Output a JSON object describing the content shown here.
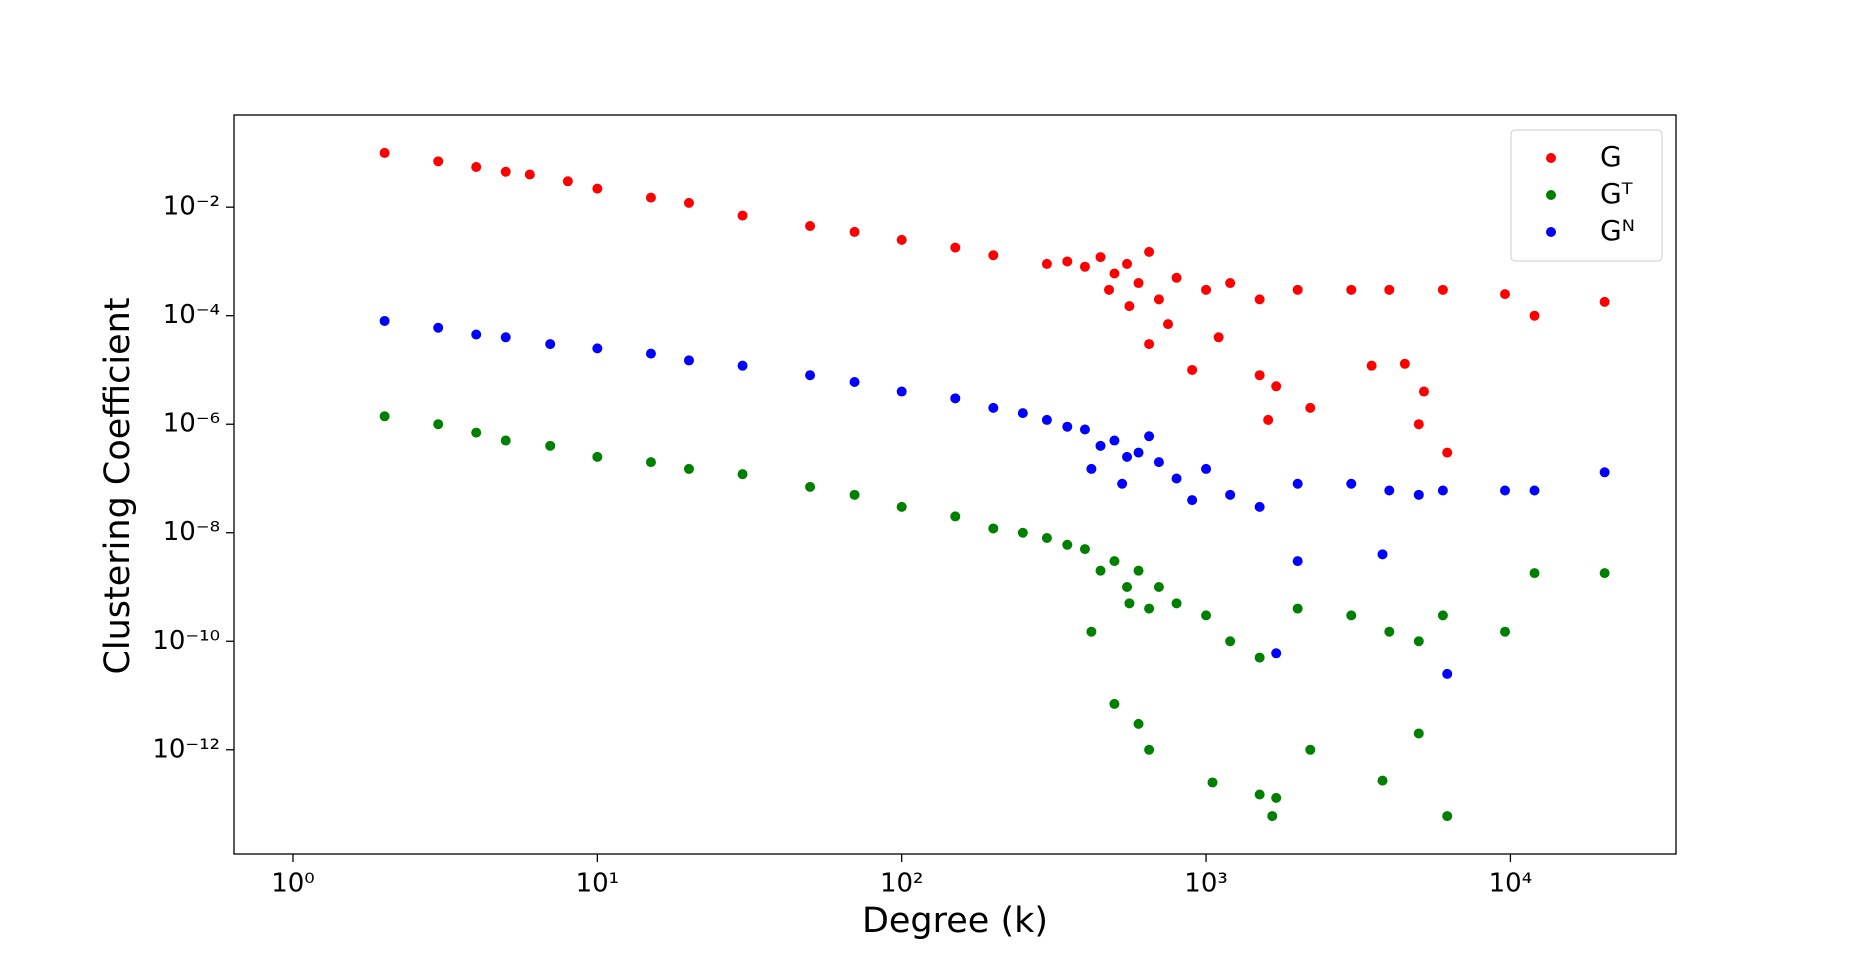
{
  "chart_data": {
    "type": "scatter",
    "xlabel": "Degree (k)",
    "ylabel": "Clustering Coefficient",
    "xscale": "log",
    "yscale": "log",
    "xlim": [
      0.64,
      35000
    ],
    "ylim": [
      1.2e-14,
      0.5
    ],
    "xticks": [
      {
        "value": 1,
        "label": "10⁰"
      },
      {
        "value": 10,
        "label": "10¹"
      },
      {
        "value": 100,
        "label": "10²"
      },
      {
        "value": 1000,
        "label": "10³"
      },
      {
        "value": 10000,
        "label": "10⁴"
      }
    ],
    "yticks": [
      {
        "value": 1e-12,
        "label": "10⁻¹²"
      },
      {
        "value": 1e-10,
        "label": "10⁻¹⁰"
      },
      {
        "value": 1e-08,
        "label": "10⁻⁸"
      },
      {
        "value": 1e-06,
        "label": "10⁻⁶"
      },
      {
        "value": 0.0001,
        "label": "10⁻⁴"
      },
      {
        "value": 0.01,
        "label": "10⁻²"
      }
    ],
    "legend": "upper right",
    "series": [
      {
        "name": "G",
        "color": "#ff0000",
        "x": [
          2,
          3,
          4,
          5,
          6,
          8,
          10,
          15,
          20,
          30,
          50,
          70,
          100,
          150,
          200,
          300,
          350,
          400,
          450,
          500,
          550,
          600,
          650,
          700,
          800,
          1000,
          1200,
          1500,
          2000,
          3000,
          4000,
          6000,
          9600,
          12000,
          20400,
          650,
          900,
          1500,
          1700,
          2200,
          1600,
          5200,
          5000,
          6200,
          3500,
          4500,
          480,
          560,
          750,
          1100
        ],
        "values": [
          0.1,
          0.07,
          0.055,
          0.045,
          0.04,
          0.03,
          0.022,
          0.015,
          0.012,
          0.007,
          0.0045,
          0.0035,
          0.0025,
          0.0018,
          0.0013,
          0.0009,
          0.001,
          0.0008,
          0.0012,
          0.0006,
          0.0009,
          0.0004,
          0.0015,
          0.0002,
          0.0005,
          0.0003,
          0.0004,
          0.0002,
          0.0003,
          0.0003,
          0.0003,
          0.0003,
          0.00025,
          0.0001,
          0.00018,
          3e-05,
          1e-05,
          8e-06,
          5e-06,
          2e-06,
          1.2e-06,
          4e-06,
          1e-06,
          3e-07,
          1.2e-05,
          1.3e-05,
          0.0003,
          0.00015,
          7e-05,
          4e-05
        ]
      },
      {
        "name": "Gᴺ",
        "color": "#0000ff",
        "x": [
          2,
          3,
          4,
          5,
          7,
          10,
          15,
          20,
          30,
          50,
          70,
          100,
          150,
          200,
          250,
          300,
          350,
          400,
          450,
          500,
          550,
          600,
          650,
          700,
          800,
          1000,
          1200,
          1500,
          2000,
          3000,
          4000,
          5000,
          6000,
          9600,
          12000,
          20400,
          1700,
          6200,
          3800,
          2000,
          420,
          530,
          900
        ],
        "values": [
          8e-05,
          6e-05,
          4.5e-05,
          4e-05,
          3e-05,
          2.5e-05,
          2e-05,
          1.5e-05,
          1.2e-05,
          8e-06,
          6e-06,
          4e-06,
          3e-06,
          2e-06,
          1.6e-06,
          1.2e-06,
          9e-07,
          8e-07,
          4e-07,
          5e-07,
          2.5e-07,
          3e-07,
          6e-07,
          2e-07,
          1e-07,
          1.5e-07,
          5e-08,
          3e-08,
          8e-08,
          8e-08,
          6e-08,
          5e-08,
          6e-08,
          6e-08,
          6e-08,
          1.3e-07,
          6e-11,
          2.5e-11,
          4e-09,
          3e-09,
          1.5e-07,
          8e-08,
          4e-08
        ]
      },
      {
        "name": "Gᵀ",
        "color": "#008000",
        "x": [
          2,
          3,
          4,
          5,
          7,
          10,
          15,
          20,
          30,
          50,
          70,
          100,
          150,
          200,
          250,
          300,
          350,
          400,
          450,
          500,
          550,
          600,
          650,
          700,
          800,
          1000,
          1200,
          1500,
          2000,
          3000,
          4000,
          5000,
          6000,
          9600,
          12000,
          20400,
          500,
          600,
          650,
          1050,
          1500,
          1650,
          1700,
          2200,
          3800,
          5000,
          6200,
          420,
          560
        ],
        "values": [
          1.4e-06,
          1e-06,
          7e-07,
          5e-07,
          4e-07,
          2.5e-07,
          2e-07,
          1.5e-07,
          1.2e-07,
          7e-08,
          5e-08,
          3e-08,
          2e-08,
          1.2e-08,
          1e-08,
          8e-09,
          6e-09,
          5e-09,
          2e-09,
          3e-09,
          1e-09,
          2e-09,
          4e-10,
          1e-09,
          5e-10,
          3e-10,
          1e-10,
          5e-11,
          4e-10,
          3e-10,
          1.5e-10,
          1e-10,
          3e-10,
          1.5e-10,
          1.8e-09,
          1.8e-09,
          7e-12,
          3e-12,
          1e-12,
          2.5e-13,
          1.5e-13,
          6e-14,
          1.3e-13,
          1e-12,
          2.7e-13,
          2e-12,
          6e-14,
          1.5e-10,
          5e-10
        ]
      }
    ]
  }
}
